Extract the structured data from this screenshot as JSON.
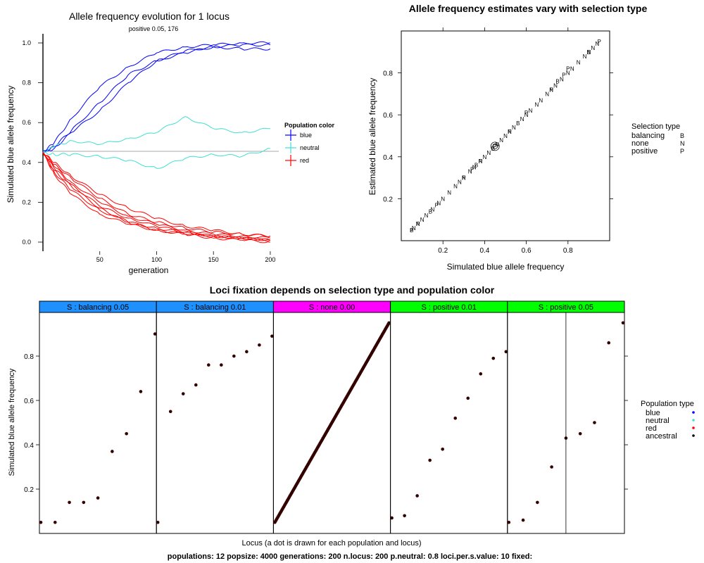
{
  "chart_data": [
    {
      "type": "line",
      "title": "Allele frequency evolution for 1 locus",
      "subtitle": "positive 0.05, 176",
      "xlabel": "generation",
      "ylabel": "Simulated blue allele frequency",
      "xlim": [
        0,
        205
      ],
      "ylim": [
        -0.05,
        1.05
      ],
      "x_ticks": [
        50,
        100,
        150,
        200
      ],
      "y_ticks": [
        0.0,
        0.2,
        0.4,
        0.6,
        0.8,
        1.0
      ],
      "y_tick_labels": [
        "0.0",
        "0.2",
        "0.4",
        "0.6",
        "0.8",
        "1.0"
      ],
      "initial_frequency": 0.45,
      "legend_title": "Population color",
      "legend": [
        {
          "name": "blue",
          "color": "#0000ff"
        },
        {
          "name": "neutral",
          "color": "#40e0d0"
        },
        {
          "name": "red",
          "color": "#ff0000"
        }
      ],
      "series": [
        {
          "name": "blue",
          "color": "#0000ff",
          "x": [
            0,
            10,
            25,
            50,
            75,
            100,
            125,
            150,
            175,
            200
          ],
          "values": [
            0.45,
            0.5,
            0.62,
            0.78,
            0.88,
            0.95,
            0.98,
            0.99,
            1.0,
            1.0
          ]
        },
        {
          "name": "blue",
          "color": "#0000ff",
          "x": [
            0,
            10,
            25,
            50,
            75,
            100,
            125,
            150,
            175,
            200
          ],
          "values": [
            0.45,
            0.48,
            0.56,
            0.7,
            0.84,
            0.91,
            0.96,
            0.98,
            0.99,
            0.99
          ]
        },
        {
          "name": "blue",
          "color": "#0000ff",
          "x": [
            0,
            10,
            25,
            50,
            75,
            100,
            125,
            150,
            175,
            200
          ],
          "values": [
            0.45,
            0.47,
            0.55,
            0.66,
            0.8,
            0.91,
            0.95,
            0.98,
            0.97,
            0.97
          ]
        },
        {
          "name": "neutral",
          "color": "#40e0d0",
          "x": [
            0,
            10,
            25,
            50,
            75,
            100,
            125,
            150,
            175,
            200
          ],
          "values": [
            0.45,
            0.48,
            0.51,
            0.49,
            0.52,
            0.55,
            0.63,
            0.57,
            0.55,
            0.57
          ]
        },
        {
          "name": "neutral",
          "color": "#40e0d0",
          "x": [
            0,
            10,
            25,
            50,
            75,
            100,
            125,
            150,
            175,
            200
          ],
          "values": [
            0.45,
            0.44,
            0.44,
            0.43,
            0.41,
            0.37,
            0.42,
            0.44,
            0.43,
            0.47
          ]
        },
        {
          "name": "red",
          "color": "#ff0000",
          "x": [
            0,
            10,
            25,
            50,
            75,
            100,
            125,
            150,
            175,
            200
          ],
          "values": [
            0.45,
            0.36,
            0.28,
            0.17,
            0.1,
            0.06,
            0.04,
            0.03,
            0.02,
            0.01
          ]
        },
        {
          "name": "red",
          "color": "#ff0000",
          "x": [
            0,
            10,
            25,
            50,
            75,
            100,
            125,
            150,
            175,
            200
          ],
          "values": [
            0.45,
            0.38,
            0.3,
            0.2,
            0.13,
            0.09,
            0.06,
            0.04,
            0.03,
            0.02
          ]
        },
        {
          "name": "red",
          "color": "#ff0000",
          "x": [
            0,
            10,
            25,
            50,
            75,
            100,
            125,
            150,
            175,
            200
          ],
          "values": [
            0.45,
            0.35,
            0.26,
            0.16,
            0.1,
            0.07,
            0.05,
            0.03,
            0.02,
            0.01
          ]
        },
        {
          "name": "red",
          "color": "#ff0000",
          "x": [
            0,
            10,
            25,
            50,
            75,
            100,
            125,
            150,
            175,
            200
          ],
          "values": [
            0.45,
            0.39,
            0.32,
            0.22,
            0.14,
            0.1,
            0.07,
            0.05,
            0.04,
            0.03
          ]
        },
        {
          "name": "red",
          "color": "#ff0000",
          "x": [
            0,
            10,
            25,
            50,
            75,
            100,
            125,
            150,
            175,
            200
          ],
          "values": [
            0.45,
            0.37,
            0.29,
            0.18,
            0.12,
            0.08,
            0.05,
            0.03,
            0.02,
            0.01
          ]
        },
        {
          "name": "red",
          "color": "#ff0000",
          "x": [
            0,
            10,
            25,
            50,
            75,
            100,
            125,
            150,
            175,
            200
          ],
          "values": [
            0.45,
            0.34,
            0.24,
            0.14,
            0.09,
            0.06,
            0.04,
            0.02,
            0.01,
            0.0
          ]
        },
        {
          "name": "red",
          "color": "#ff0000",
          "x": [
            0,
            10,
            25,
            50,
            75,
            100,
            125,
            150,
            175,
            200
          ],
          "values": [
            0.45,
            0.4,
            0.33,
            0.24,
            0.17,
            0.12,
            0.08,
            0.06,
            0.04,
            0.03
          ]
        }
      ],
      "grid": false
    },
    {
      "type": "scatter",
      "title": "Allele frequency estimates vary with selection type",
      "xlabel": "Simulated blue allele frequency",
      "ylabel": "Estimated blue allele frequency",
      "xlim": [
        0.0,
        1.0
      ],
      "ylim": [
        0.0,
        1.0
      ],
      "x_ticks": [
        0.2,
        0.4,
        0.6,
        0.8
      ],
      "y_ticks": [
        0.2,
        0.4,
        0.6,
        0.8
      ],
      "legend_title": "Selection type",
      "legend": [
        {
          "name": "balancing",
          "symbol": "B",
          "color": "#1e90ff"
        },
        {
          "name": "none",
          "symbol": "N",
          "color": "#ff00ff"
        },
        {
          "name": "positive",
          "symbol": "P",
          "color": "#00ff00"
        }
      ],
      "points_range": [
        0.05,
        0.95
      ],
      "highlight": {
        "x": 0.45,
        "y": 0.45
      },
      "series": [
        {
          "name": "balancing",
          "symbol": "B",
          "color": "#1e90ff",
          "x": [
            0.05,
            0.14,
            0.36,
            0.44,
            0.56,
            0.75,
            0.9
          ],
          "values": [
            0.05,
            0.14,
            0.36,
            0.44,
            0.56,
            0.76,
            0.9
          ]
        },
        {
          "name": "none",
          "symbol": "N",
          "color": "#ff00ff",
          "x": [
            0.06,
            0.08,
            0.1,
            0.12,
            0.15,
            0.18,
            0.2,
            0.23,
            0.26,
            0.28,
            0.3,
            0.33,
            0.35,
            0.38,
            0.4,
            0.42,
            0.46,
            0.48,
            0.5,
            0.52,
            0.54,
            0.58,
            0.6,
            0.62,
            0.65,
            0.67,
            0.7,
            0.72,
            0.74,
            0.77,
            0.8,
            0.82,
            0.85,
            0.88,
            0.9,
            0.92,
            0.94
          ],
          "values": [
            0.06,
            0.08,
            0.1,
            0.12,
            0.15,
            0.18,
            0.2,
            0.23,
            0.26,
            0.28,
            0.3,
            0.33,
            0.35,
            0.38,
            0.4,
            0.42,
            0.46,
            0.48,
            0.5,
            0.52,
            0.54,
            0.58,
            0.6,
            0.62,
            0.65,
            0.67,
            0.7,
            0.72,
            0.74,
            0.77,
            0.8,
            0.82,
            0.85,
            0.88,
            0.9,
            0.92,
            0.94
          ]
        },
        {
          "name": "positive",
          "symbol": "P",
          "color": "#00ff00",
          "x": [
            0.05,
            0.08,
            0.17,
            0.3,
            0.34,
            0.38,
            0.45,
            0.52,
            0.6,
            0.72,
            0.78,
            0.8,
            0.95
          ],
          "values": [
            0.05,
            0.08,
            0.17,
            0.3,
            0.34,
            0.38,
            0.45,
            0.52,
            0.61,
            0.72,
            0.79,
            0.82,
            0.95
          ]
        }
      ],
      "grid": false
    },
    {
      "type": "scatter",
      "title": "Loci fixation depends on selection type and population color",
      "xlabel": "Locus (a dot is drawn for each population and locus)",
      "ylabel": "Simulated blue allele frequency",
      "ylim": [
        0.0,
        1.0
      ],
      "y_ticks": [
        0.2,
        0.4,
        0.6,
        0.8
      ],
      "legend_title": "Population type",
      "legend": [
        {
          "name": "blue",
          "color": "#0000ff"
        },
        {
          "name": "neutral",
          "color": "#40e0d0"
        },
        {
          "name": "red",
          "color": "#ff0000"
        },
        {
          "name": "ancestral",
          "color": "#000000"
        }
      ],
      "panels": [
        {
          "label": "S : balancing 0.05",
          "color": "#1e90ff",
          "values": [
            0.05,
            0.05,
            0.14,
            0.14,
            0.16,
            0.37,
            0.45,
            0.64,
            0.9
          ]
        },
        {
          "label": "S : balancing 0.01",
          "color": "#1e90ff",
          "values": [
            0.05,
            0.55,
            0.63,
            0.67,
            0.76,
            0.76,
            0.8,
            0.82,
            0.85,
            0.89
          ]
        },
        {
          "label": "S : none 0.00",
          "color": "#ff00ff",
          "n_points": 160,
          "range": [
            0.05,
            0.95
          ]
        },
        {
          "label": "S : positive 0.01",
          "color": "#00ff00",
          "values": [
            0.07,
            0.08,
            0.17,
            0.33,
            0.38,
            0.52,
            0.61,
            0.72,
            0.79,
            0.82
          ]
        },
        {
          "label": "S : positive 0.05",
          "color": "#00ff00",
          "values": [
            0.05,
            0.06,
            0.14,
            0.3,
            0.43,
            0.45,
            0.5,
            0.86,
            0.95
          ],
          "vline_fraction": 0.5
        }
      ],
      "grid": false
    }
  ],
  "footer": "populations: 12  popsize: 4000  generations: 200  n.locus: 200  p.neutral: 0.8  loci.per.s.value: 10  fixed:"
}
